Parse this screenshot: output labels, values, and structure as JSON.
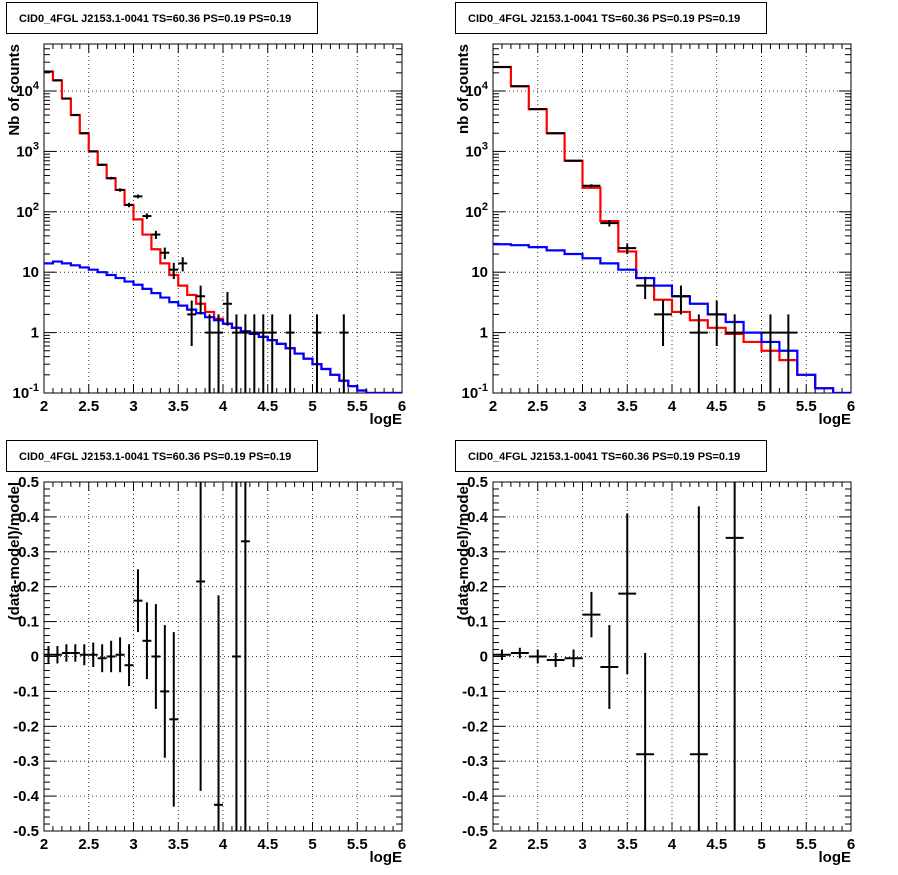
{
  "chart_data": [
    {
      "type": "line",
      "title": "CID0_4FGL J2153.1-0041 TS=60.36 PS=0.19 PS=0.19",
      "xlabel": "logE",
      "ylabel": "Nb of counts",
      "yscale": "log",
      "xlim": [
        2,
        6
      ],
      "ylim": [
        0.1,
        60000
      ],
      "grid": true,
      "colors": {
        "total_model": "#ff0000",
        "background_model": "#0000ff",
        "data": "#000000"
      },
      "x_ticks": [
        "2",
        "2.5",
        "3",
        "3.5",
        "4",
        "4.5",
        "5",
        "5.5",
        "6"
      ],
      "y_ticks": [
        "10^-1",
        "1",
        "10",
        "10^2",
        "10^3",
        "10^4"
      ],
      "bin_width": 0.1,
      "series": [
        {
          "style": "step",
          "color": "#ff0000",
          "x": [
            2.0,
            2.1,
            2.2,
            2.3,
            2.4,
            2.5,
            2.6,
            2.7,
            2.8,
            2.9,
            3.0,
            3.1,
            3.2,
            3.3,
            3.4,
            3.5,
            3.6,
            3.7,
            3.8,
            3.9,
            4.0,
            4.1,
            4.2,
            4.3,
            4.4,
            4.5,
            4.6,
            4.7,
            4.8,
            4.9,
            5.0,
            5.1,
            5.2,
            5.3,
            5.4,
            5.5,
            5.6,
            5.7,
            5.8,
            5.9
          ],
          "y": [
            21000,
            15000,
            7500,
            4000,
            2000,
            1000,
            600,
            360,
            230,
            130,
            75,
            42,
            24,
            14,
            9,
            6,
            4.2,
            3.0,
            2.2,
            1.7,
            1.4,
            1.2,
            1.05,
            0.95,
            0.85,
            0.75,
            0.65,
            0.55,
            0.45,
            0.37,
            0.3,
            0.25,
            0.2,
            0.16,
            0.13,
            0.11,
            0.1,
            0.1,
            0.1,
            0.1
          ]
        },
        {
          "style": "step",
          "color": "#0000ff",
          "x": [
            2.0,
            2.1,
            2.2,
            2.3,
            2.4,
            2.5,
            2.6,
            2.7,
            2.8,
            2.9,
            3.0,
            3.1,
            3.2,
            3.3,
            3.4,
            3.5,
            3.6,
            3.7,
            3.8,
            3.9,
            4.0,
            4.1,
            4.2,
            4.3,
            4.4,
            4.5,
            4.6,
            4.7,
            4.8,
            4.9,
            5.0,
            5.1,
            5.2,
            5.3,
            5.4,
            5.5,
            5.6,
            5.7,
            5.8,
            5.9
          ],
          "y": [
            14,
            15,
            14,
            13,
            12,
            11,
            10,
            9,
            8,
            7,
            6.2,
            5.3,
            4.5,
            3.8,
            3.2,
            2.8,
            2.4,
            2.1,
            1.8,
            1.6,
            1.4,
            1.2,
            1.05,
            0.95,
            0.85,
            0.75,
            0.65,
            0.55,
            0.45,
            0.37,
            0.3,
            0.25,
            0.2,
            0.16,
            0.13,
            0.11,
            0.1,
            0.1,
            0.1,
            0.1
          ]
        },
        {
          "style": "errorbar",
          "color": "#000000",
          "x": [
            2.05,
            2.15,
            2.25,
            2.35,
            2.45,
            2.55,
            2.65,
            2.75,
            2.85,
            2.95,
            3.05,
            3.15,
            3.25,
            3.35,
            3.45,
            3.55,
            3.65,
            3.75,
            3.85,
            3.95,
            4.05,
            4.15,
            4.25,
            4.35,
            4.45,
            4.55,
            4.75,
            5.05,
            5.35
          ],
          "y": [
            21000,
            15000,
            7500,
            4000,
            2000,
            1000,
            600,
            360,
            230,
            130,
            180,
            85,
            42,
            21,
            11,
            14,
            2,
            4,
            1,
            1,
            3,
            1,
            1,
            1,
            1,
            1,
            1,
            1,
            1
          ],
          "yerr_low": [
            145,
            122,
            87,
            63,
            45,
            32,
            24,
            19,
            15,
            11,
            13,
            9,
            6.5,
            4.6,
            3.3,
            3.7,
            1.4,
            2,
            1,
            1,
            1.7,
            1,
            1,
            1,
            1,
            1,
            1,
            1,
            1
          ],
          "yerr_high": [
            145,
            122,
            87,
            63,
            45,
            32,
            24,
            19,
            15,
            11,
            13,
            9,
            6.5,
            4.6,
            3.3,
            3.7,
            1.4,
            2,
            1,
            1,
            1.7,
            1,
            1,
            1,
            1,
            1,
            1,
            1,
            1
          ]
        }
      ]
    },
    {
      "type": "line",
      "title": "CID0_4FGL J2153.1-0041 TS=60.36 PS=0.19 PS=0.19",
      "xlabel": "logE",
      "ylabel": "nb of counts",
      "yscale": "log",
      "xlim": [
        2,
        6
      ],
      "ylim": [
        0.1,
        60000
      ],
      "grid": true,
      "colors": {
        "total_model": "#ff0000",
        "background_model": "#0000ff",
        "data": "#000000"
      },
      "x_ticks": [
        "2",
        "2.5",
        "3",
        "3.5",
        "4",
        "4.5",
        "5",
        "5.5",
        "6"
      ],
      "y_ticks": [
        "10^-1",
        "1",
        "10",
        "10^2",
        "10^3",
        "10^4"
      ],
      "bin_width": 0.2,
      "series": [
        {
          "style": "step",
          "color": "#ff0000",
          "x": [
            2.0,
            2.2,
            2.4,
            2.6,
            2.8,
            3.0,
            3.2,
            3.4,
            3.6,
            3.8,
            4.0,
            4.2,
            4.4,
            4.6,
            4.8,
            5.0,
            5.2,
            5.4,
            5.6,
            5.8
          ],
          "y": [
            25000,
            12000,
            5000,
            2000,
            700,
            250,
            70,
            22,
            8,
            3.5,
            2.2,
            1.6,
            1.2,
            0.95,
            0.7,
            0.5,
            0.35,
            0.2,
            0.12,
            0.1
          ]
        },
        {
          "style": "step",
          "color": "#0000ff",
          "x": [
            2.0,
            2.2,
            2.4,
            2.6,
            2.8,
            3.0,
            3.2,
            3.4,
            3.6,
            3.8,
            4.0,
            4.2,
            4.4,
            4.6,
            4.8,
            5.0,
            5.2,
            5.4,
            5.6,
            5.8
          ],
          "y": [
            29,
            28,
            26,
            23,
            20,
            17,
            14,
            11,
            8,
            6,
            4,
            3,
            2,
            1.5,
            1,
            0.7,
            0.5,
            0.2,
            0.12,
            0.1
          ]
        },
        {
          "style": "errorbar",
          "color": "#000000",
          "x": [
            2.1,
            2.3,
            2.5,
            2.7,
            2.9,
            3.1,
            3.3,
            3.5,
            3.7,
            3.9,
            4.1,
            4.3,
            4.5,
            4.7,
            5.1,
            5.3
          ],
          "y": [
            25000,
            12000,
            5000,
            2000,
            700,
            270,
            65,
            25,
            6,
            2,
            4,
            1,
            2,
            1,
            1,
            1
          ],
          "yerr_low": [
            158,
            110,
            71,
            45,
            26,
            16,
            8,
            5,
            2.4,
            1.4,
            2,
            1,
            1.4,
            1,
            1,
            1
          ],
          "yerr_high": [
            158,
            110,
            71,
            45,
            26,
            16,
            8,
            5,
            2.4,
            1.4,
            2,
            1,
            1.4,
            1,
            1,
            1
          ]
        }
      ]
    },
    {
      "type": "scatter",
      "title": "CID0_4FGL J2153.1-0041 TS=60.36 PS=0.19 PS=0.19",
      "xlabel": "logE",
      "ylabel": "(data-model)/model",
      "xlim": [
        2,
        6
      ],
      "ylim": [
        -0.5,
        0.5
      ],
      "grid": true,
      "x_ticks": [
        "2",
        "2.5",
        "3",
        "3.5",
        "4",
        "4.5",
        "5",
        "5.5",
        "6"
      ],
      "y_ticks": [
        "-0.5",
        "-0.4",
        "-0.3",
        "-0.2",
        "-0.1",
        "0",
        "0.1",
        "0.2",
        "0.3",
        "0.4",
        "0.5"
      ],
      "bin_width": 0.1,
      "series": [
        {
          "style": "errorbar",
          "color": "#000000",
          "x": [
            2.05,
            2.15,
            2.25,
            2.35,
            2.45,
            2.55,
            2.65,
            2.75,
            2.85,
            2.95,
            3.05,
            3.15,
            3.25,
            3.35,
            3.45,
            3.75,
            3.95,
            4.15,
            4.25
          ],
          "y": [
            0.005,
            0.005,
            0.01,
            0.01,
            0.005,
            0.005,
            -0.005,
            0.0,
            0.005,
            -0.025,
            0.16,
            0.045,
            0.0,
            -0.1,
            -0.18,
            0.215,
            -0.425,
            0.0,
            0.33
          ],
          "yerr": [
            0.025,
            0.025,
            0.025,
            0.025,
            0.03,
            0.035,
            0.04,
            0.045,
            0.05,
            0.06,
            0.09,
            0.11,
            0.15,
            0.19,
            0.25,
            0.6,
            0.6,
            0.9,
            0.9
          ]
        }
      ]
    },
    {
      "type": "scatter",
      "title": "CID0_4FGL J2153.1-0041 TS=60.36 PS=0.19 PS=0.19",
      "xlabel": "logE",
      "ylabel": "(data-model)/model",
      "xlim": [
        2,
        6
      ],
      "ylim": [
        -0.5,
        0.5
      ],
      "grid": true,
      "x_ticks": [
        "2",
        "2.5",
        "3",
        "3.5",
        "4",
        "4.5",
        "5",
        "5.5",
        "6"
      ],
      "y_ticks": [
        "-0.5",
        "-0.4",
        "-0.3",
        "-0.2",
        "-0.1",
        "0",
        "0.1",
        "0.2",
        "0.3",
        "0.4",
        "0.5"
      ],
      "bin_width": 0.2,
      "series": [
        {
          "style": "errorbar",
          "color": "#000000",
          "x": [
            2.1,
            2.3,
            2.5,
            2.7,
            2.9,
            3.1,
            3.3,
            3.5,
            3.7,
            4.3,
            4.7
          ],
          "y": [
            0.005,
            0.01,
            0.0,
            -0.01,
            -0.005,
            0.12,
            -0.03,
            0.18,
            -0.28,
            -0.28,
            0.34
          ],
          "yerr": [
            0.015,
            0.015,
            0.02,
            0.02,
            0.025,
            0.065,
            0.12,
            0.23,
            0.29,
            0.71,
            0.9
          ]
        }
      ]
    }
  ]
}
